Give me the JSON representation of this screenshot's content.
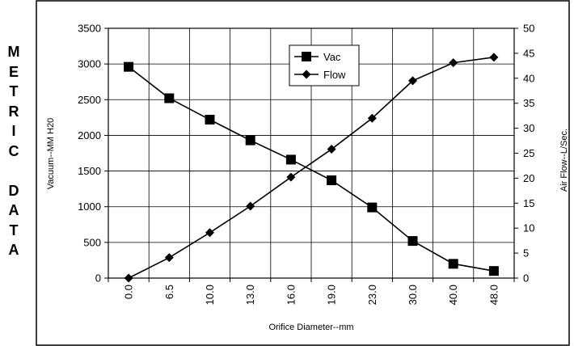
{
  "side_label": [
    "M",
    "E",
    "T",
    "R",
    "I",
    "C",
    "",
    "D",
    "A",
    "T",
    "A"
  ],
  "chart_data": {
    "type": "line",
    "title": "",
    "xlabel": "Orifice Diameter--mm",
    "ylabel": "Vacuum--MM H20",
    "y2label": "Air Flow--L/Sec.",
    "categories": [
      "0.0",
      "6.5",
      "10.0",
      "13.0",
      "16.0",
      "19.0",
      "23.0",
      "30.0",
      "40.0",
      "48.0"
    ],
    "ylim": [
      0,
      3500
    ],
    "y_ticks": [
      0,
      500,
      1000,
      1500,
      2000,
      2500,
      3000,
      3500
    ],
    "y2lim": [
      0,
      50
    ],
    "y2_ticks": [
      0,
      5,
      10,
      15,
      20,
      25,
      30,
      35,
      40,
      45,
      50
    ],
    "grid": true,
    "legend_position": "top-center",
    "series": [
      {
        "name": "Vac",
        "axis": "left",
        "marker": "square",
        "values": [
          2960,
          2520,
          2220,
          1930,
          1660,
          1370,
          990,
          520,
          200,
          100
        ]
      },
      {
        "name": "Flow",
        "axis": "right",
        "marker": "diamond",
        "values": [
          0,
          4.1,
          9.1,
          14.4,
          20.2,
          25.8,
          32.0,
          39.5,
          43.1,
          44.2
        ]
      }
    ]
  }
}
